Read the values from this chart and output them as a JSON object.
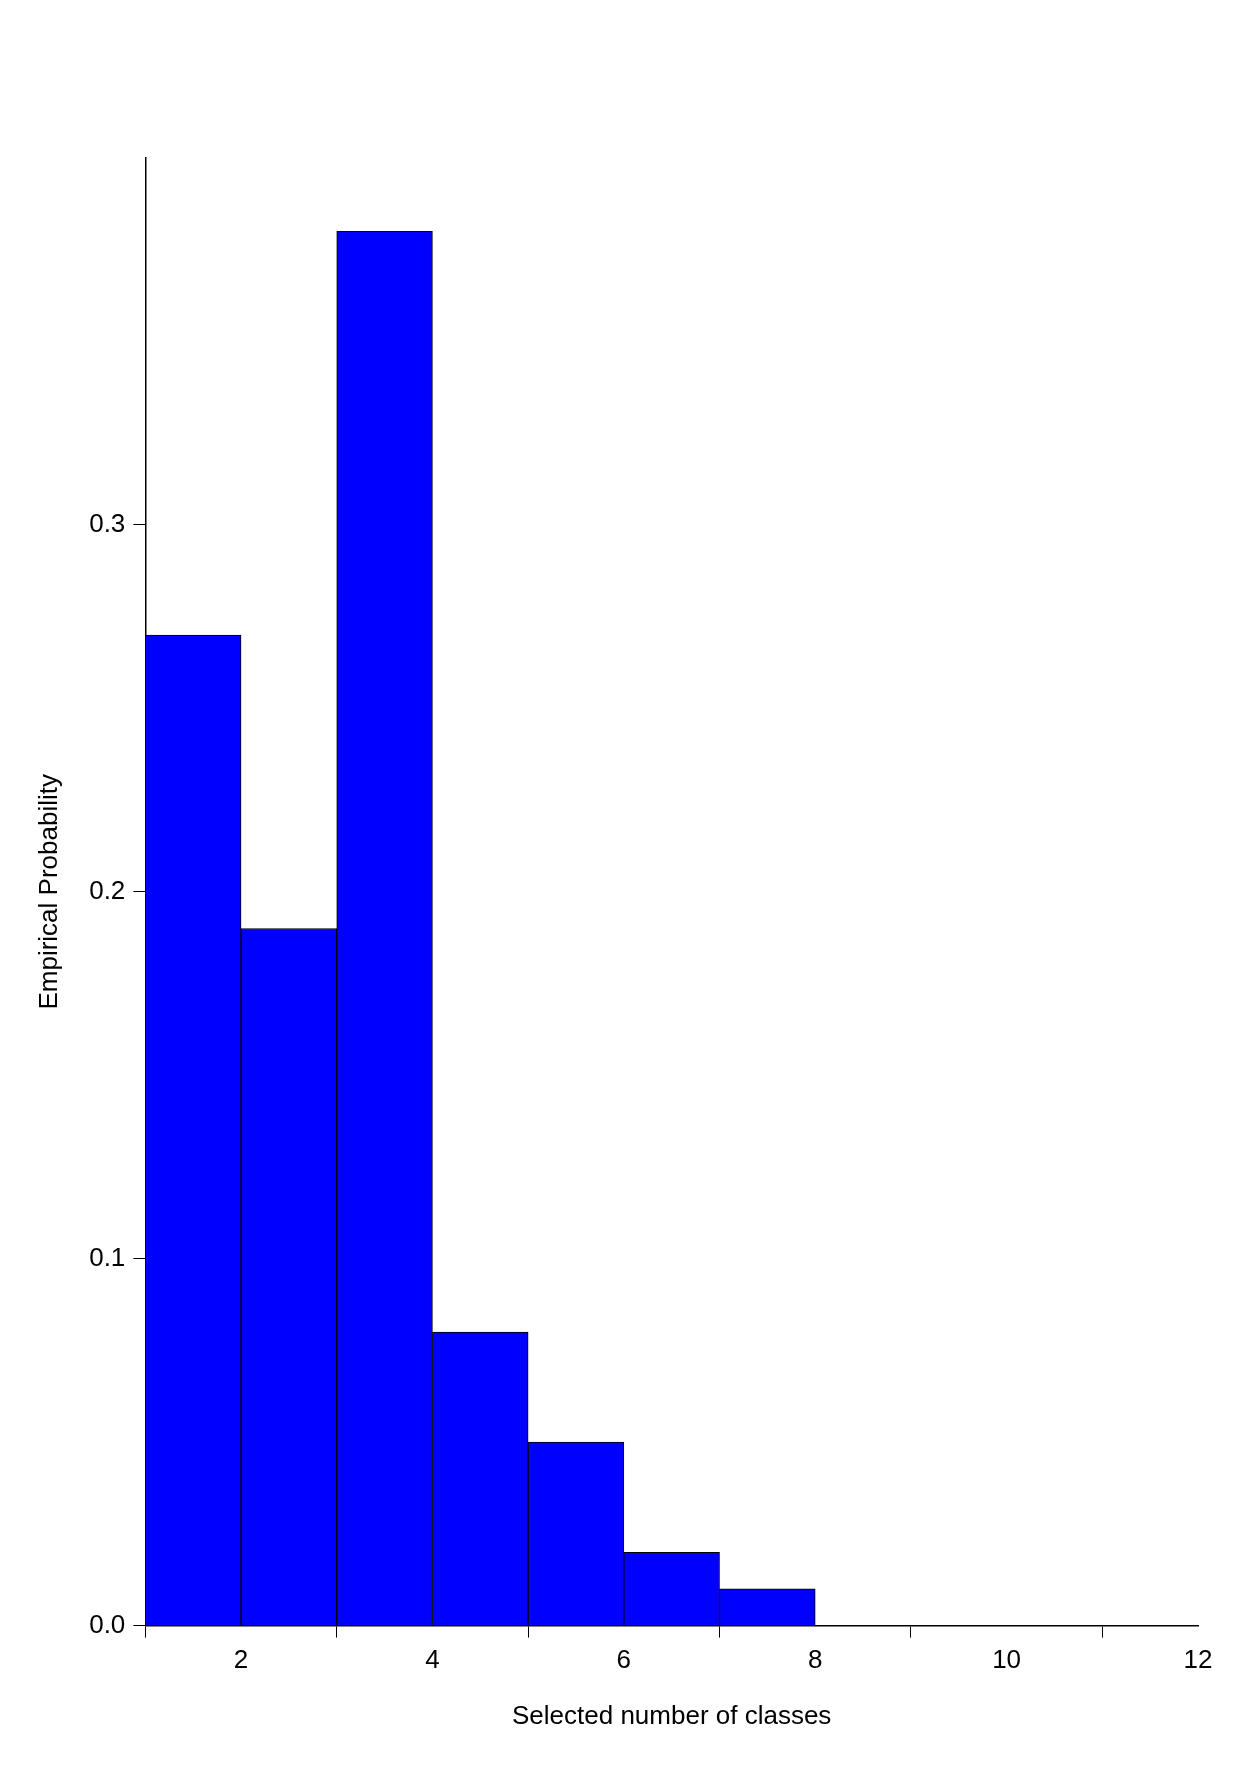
{
  "chart_data": {
    "type": "histogram",
    "xlabel": "Selected number of classes",
    "ylabel": "Empirical Probability",
    "bins": [
      1,
      2,
      3,
      4,
      5,
      6,
      7,
      8,
      9,
      10,
      11,
      12
    ],
    "values": [
      0.27,
      0.19,
      0.38,
      0.08,
      0.05,
      0.02,
      0.01,
      0,
      0,
      0,
      0
    ],
    "color": "#0000ff",
    "xlim": [
      1,
      12
    ],
    "xticks": [
      2,
      4,
      6,
      8,
      10,
      12
    ],
    "ylim": [
      0,
      0.4
    ],
    "yticks": [
      {
        "value": 0,
        "label": "0.0"
      },
      0.1,
      0.2,
      0.3
    ],
    "grid": false
  }
}
